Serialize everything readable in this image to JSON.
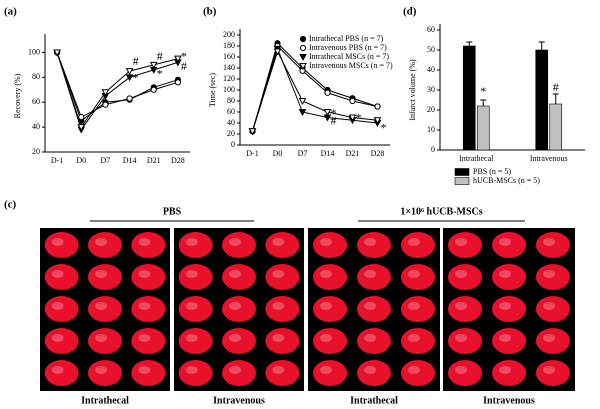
{
  "chart_data": [
    {
      "type": "line",
      "panel_label": "(a)",
      "y_label": "Recovery (%)",
      "categories": [
        "D-1",
        "D0",
        "D7",
        "D14",
        "D21",
        "D28"
      ],
      "ylim": [
        20,
        110
      ],
      "yticks": [
        20,
        40,
        60,
        80,
        100
      ],
      "series": [
        {
          "marker": "circle",
          "color": "#000000",
          "values": [
            100,
            45,
            60,
            62,
            72,
            78
          ]
        },
        {
          "marker": "circle-open",
          "color": "#000000",
          "values": [
            100,
            48,
            58,
            63,
            70,
            76
          ]
        },
        {
          "marker": "triangle",
          "color": "#000000",
          "values": [
            100,
            38,
            65,
            80,
            86,
            92
          ]
        },
        {
          "marker": "triangle-open",
          "color": "#000000",
          "values": [
            100,
            40,
            68,
            85,
            90,
            95
          ]
        }
      ],
      "annotations": [
        {
          "text": "#",
          "x": "D14",
          "y": 92
        },
        {
          "text": "*",
          "x": "D14",
          "y": 79
        },
        {
          "text": "#",
          "x": "D21",
          "y": 96
        },
        {
          "text": "*",
          "x": "D21",
          "y": 82
        },
        {
          "text": "*",
          "x": "D28",
          "y": 96
        },
        {
          "text": "#",
          "x": "D28",
          "y": 88
        }
      ]
    },
    {
      "type": "line",
      "panel_label": "(b)",
      "y_label": "Time (sec)",
      "categories": [
        "D-1",
        "D0",
        "D7",
        "D14",
        "D21",
        "D28"
      ],
      "ylim": [
        0,
        200
      ],
      "yticks": [
        0,
        20,
        40,
        60,
        80,
        100,
        120,
        140,
        160,
        180,
        200
      ],
      "legend": "upper right",
      "series": [
        {
          "name": "Intrathecal PBS (n = 7)",
          "marker": "circle",
          "color": "#000000",
          "values": [
            25,
            185,
            140,
            100,
            85,
            70
          ]
        },
        {
          "name": "Intravenous PBS (n = 7)",
          "marker": "circle-open",
          "color": "#000000",
          "values": [
            25,
            180,
            135,
            95,
            80,
            70
          ]
        },
        {
          "name": "Intrathecal MSCs (n = 7)",
          "marker": "triangle",
          "color": "#000000",
          "values": [
            25,
            175,
            60,
            50,
            45,
            40
          ]
        },
        {
          "name": "Intravenous MSCs (n = 7)",
          "marker": "triangle-open",
          "color": "#000000",
          "values": [
            25,
            170,
            80,
            60,
            50,
            45
          ]
        }
      ],
      "annotations": [
        {
          "text": "*",
          "x": "D14",
          "y": 56
        },
        {
          "text": "#",
          "x": "D14",
          "y": 42
        },
        {
          "text": "*",
          "x": "D21",
          "y": 48
        },
        {
          "text": "*",
          "x": "D28",
          "y": 30
        }
      ]
    },
    {
      "type": "bar",
      "panel_label": "(d)",
      "y_label": "Infarct volume (%)",
      "categories": [
        "Intrathecal",
        "Intravenous"
      ],
      "ylim": [
        0,
        60
      ],
      "yticks": [
        0,
        10,
        20,
        30,
        40,
        50,
        60
      ],
      "legend": "lower right",
      "series": [
        {
          "name": "PBS (n = 5)",
          "color": "#000000",
          "values": [
            52,
            50
          ],
          "errors": [
            2,
            4
          ]
        },
        {
          "name": "hUCB-MSCs (n = 5)",
          "color": "#c0c0c0",
          "values": [
            22,
            23
          ],
          "errors": [
            3,
            5
          ]
        }
      ],
      "annotations": [
        {
          "text": "*",
          "x": "Intrathecal",
          "y": 29
        },
        {
          "text": "#",
          "x": "Intravenous",
          "y": 31
        }
      ]
    }
  ],
  "photo_panel": {
    "label": "(c)",
    "groups": [
      {
        "title": "PBS",
        "columns": [
          "Intrathecal",
          "Intravenous"
        ]
      },
      {
        "title": "1×10⁶ hUCB-MSCs",
        "columns": [
          "Intrathecal",
          "Intravenous"
        ]
      }
    ]
  }
}
